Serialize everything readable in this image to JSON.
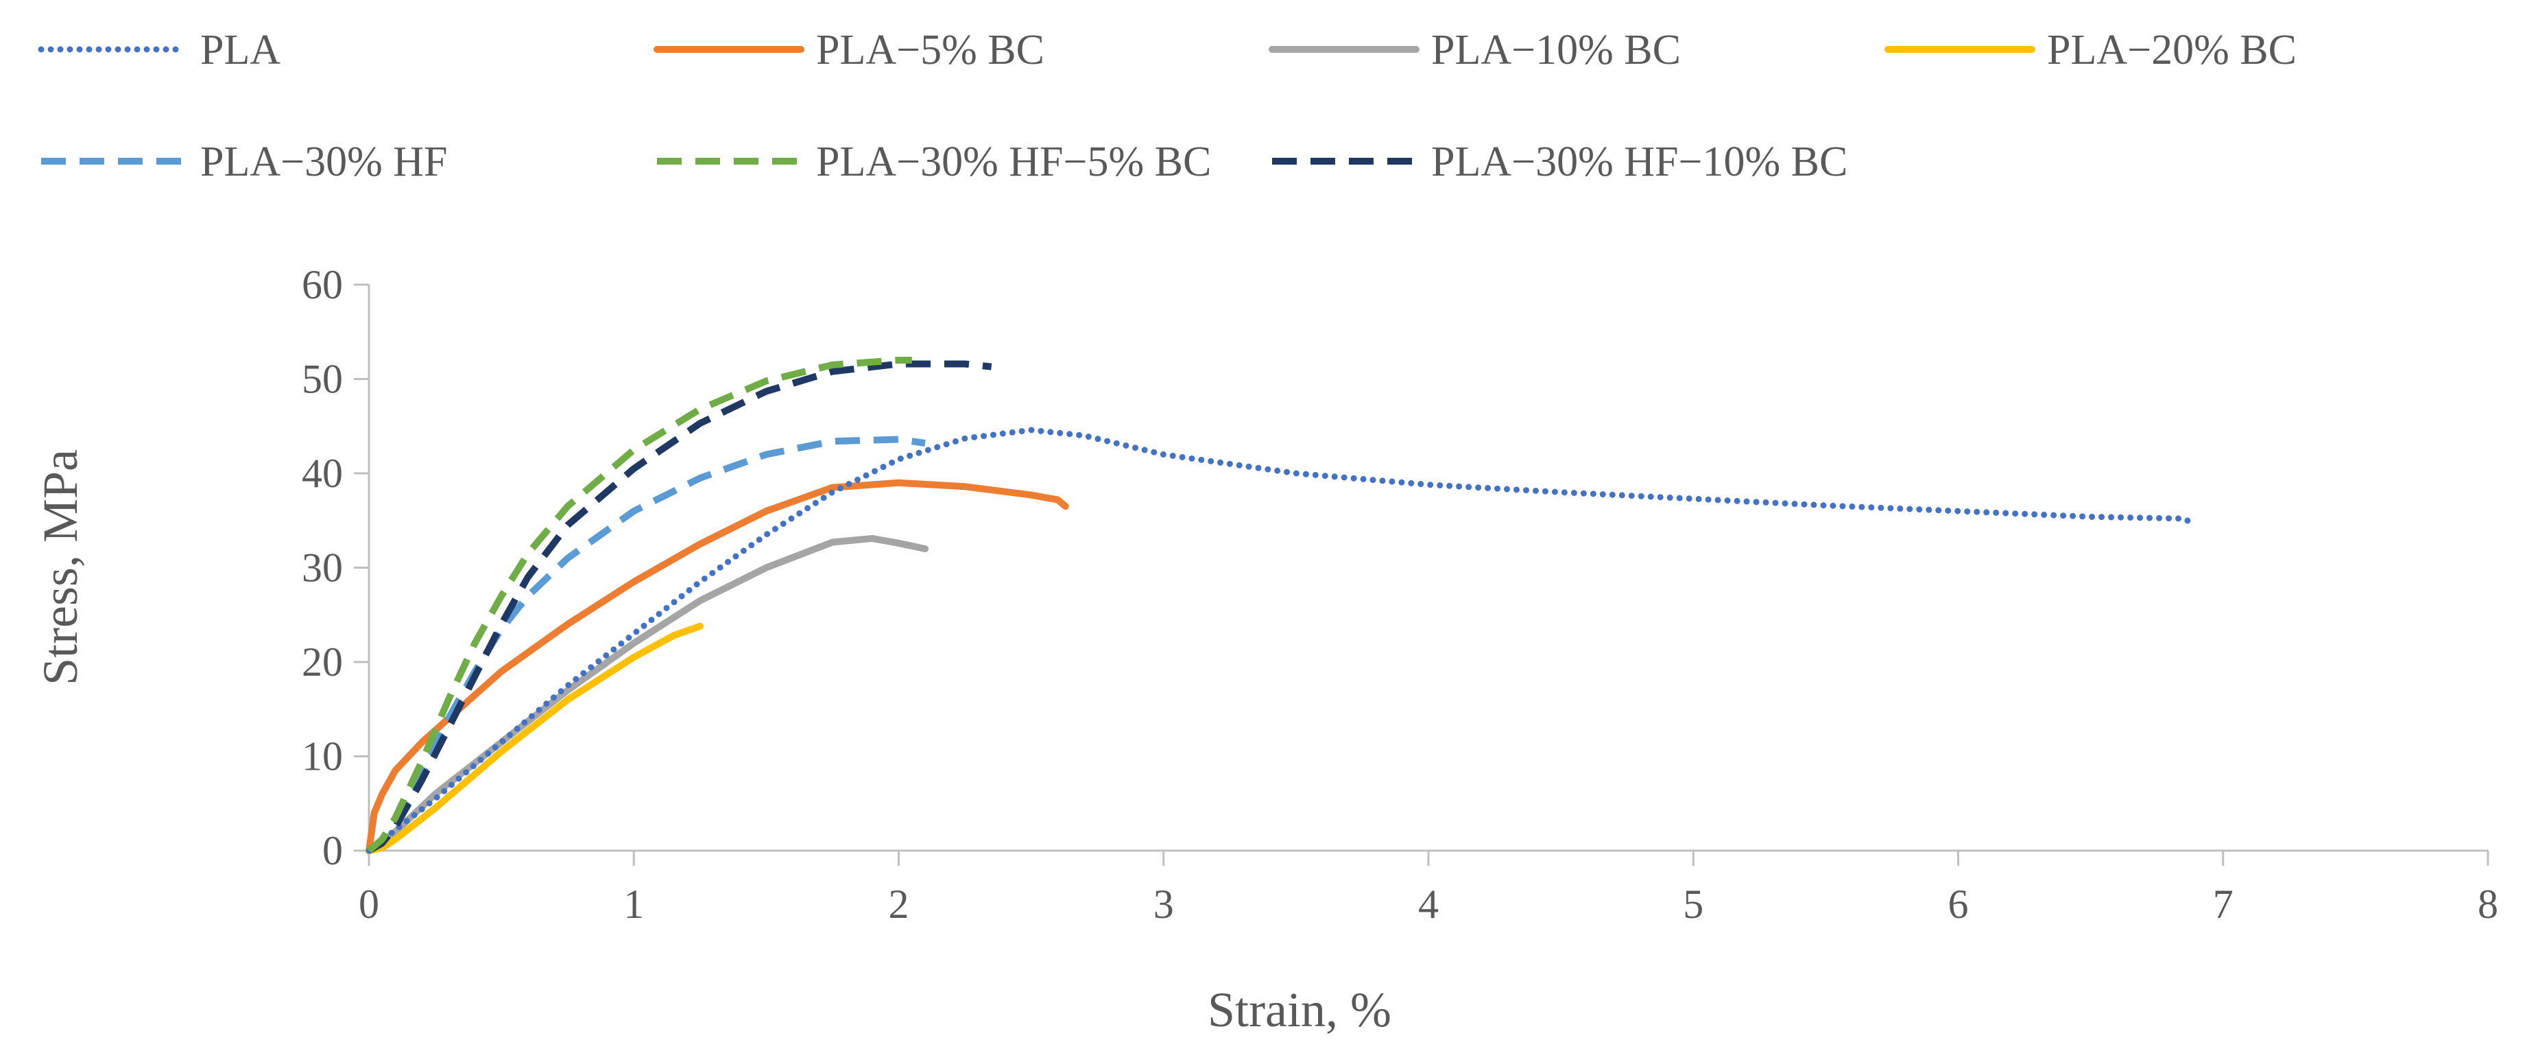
{
  "chart_data": {
    "type": "line",
    "title": "",
    "xlabel": "Strain, %",
    "ylabel": "Stress, MPa",
    "xlim": [
      0,
      8
    ],
    "ylim": [
      0,
      60
    ],
    "x_ticks": [
      0,
      1,
      2,
      3,
      4,
      5,
      6,
      7,
      8
    ],
    "y_ticks": [
      0,
      10,
      20,
      30,
      40,
      50,
      60
    ],
    "grid": false,
    "legend_position": "top",
    "series": [
      {
        "name": "PLA",
        "color": "#4472C4",
        "style": "dotted",
        "x": [
          0.0,
          0.25,
          0.5,
          0.75,
          1.0,
          1.25,
          1.5,
          1.75,
          2.0,
          2.25,
          2.5,
          2.7,
          3.0,
          3.5,
          4.0,
          4.5,
          5.0,
          5.5,
          6.0,
          6.5,
          6.85,
          6.88
        ],
        "y": [
          0.0,
          5.5,
          11.5,
          17.5,
          23.0,
          28.5,
          33.5,
          38.0,
          41.5,
          43.7,
          44.6,
          44.0,
          42.0,
          40.0,
          38.8,
          38.0,
          37.3,
          36.6,
          36.0,
          35.4,
          35.2,
          34.8
        ]
      },
      {
        "name": "PLA−5% BC",
        "color": "#ED7D31",
        "style": "solid",
        "x": [
          0.0,
          0.02,
          0.05,
          0.1,
          0.2,
          0.3,
          0.5,
          0.75,
          1.0,
          1.25,
          1.5,
          1.75,
          2.0,
          2.25,
          2.5,
          2.6,
          2.63
        ],
        "y": [
          0.0,
          4.0,
          6.0,
          8.5,
          11.5,
          14.0,
          19.0,
          24.0,
          28.5,
          32.5,
          36.0,
          38.5,
          39.0,
          38.6,
          37.7,
          37.2,
          36.5
        ]
      },
      {
        "name": "PLA−10% BC",
        "color": "#A5A5A5",
        "style": "solid",
        "x": [
          0.0,
          0.05,
          0.1,
          0.25,
          0.5,
          0.75,
          1.0,
          1.25,
          1.5,
          1.75,
          1.9,
          2.0,
          2.1
        ],
        "y": [
          0.0,
          1.0,
          2.0,
          6.0,
          11.5,
          17.0,
          22.0,
          26.5,
          30.0,
          32.7,
          33.1,
          32.6,
          32.0
        ]
      },
      {
        "name": "PLA−20% BC",
        "color": "#FFC000",
        "style": "solid",
        "x": [
          0.0,
          0.05,
          0.1,
          0.25,
          0.5,
          0.75,
          1.0,
          1.15,
          1.25
        ],
        "y": [
          0.0,
          0.3,
          1.2,
          4.5,
          10.5,
          16.0,
          20.5,
          22.8,
          23.8
        ]
      },
      {
        "name": "PLA−30% HF",
        "color": "#5B9BD5",
        "style": "dashed",
        "x": [
          0.0,
          0.05,
          0.1,
          0.2,
          0.3,
          0.4,
          0.5,
          0.6,
          0.75,
          1.0,
          1.25,
          1.5,
          1.75,
          2.0,
          2.1
        ],
        "y": [
          0.0,
          1.0,
          3.0,
          8.0,
          14.0,
          19.0,
          23.5,
          27.0,
          31.0,
          36.0,
          39.5,
          42.0,
          43.4,
          43.6,
          43.2
        ]
      },
      {
        "name": "PLA−30% HF−5% BC",
        "color": "#70AD47",
        "style": "dashed",
        "x": [
          0.0,
          0.05,
          0.1,
          0.2,
          0.3,
          0.4,
          0.5,
          0.6,
          0.75,
          1.0,
          1.25,
          1.5,
          1.75,
          2.0,
          2.05
        ],
        "y": [
          0.0,
          1.2,
          3.5,
          9.5,
          16.0,
          22.0,
          27.0,
          31.5,
          36.5,
          42.5,
          46.8,
          49.8,
          51.5,
          52.0,
          52.0
        ]
      },
      {
        "name": "PLA−30% HF−10% BC",
        "color": "#203864",
        "style": "dashed",
        "x": [
          0.0,
          0.05,
          0.1,
          0.2,
          0.3,
          0.4,
          0.5,
          0.6,
          0.75,
          1.0,
          1.25,
          1.5,
          1.75,
          2.0,
          2.25,
          2.35
        ],
        "y": [
          0.0,
          0.8,
          2.5,
          7.5,
          13.0,
          18.5,
          24.0,
          29.0,
          34.5,
          40.5,
          45.3,
          48.7,
          50.8,
          51.6,
          51.6,
          51.3
        ]
      }
    ]
  }
}
